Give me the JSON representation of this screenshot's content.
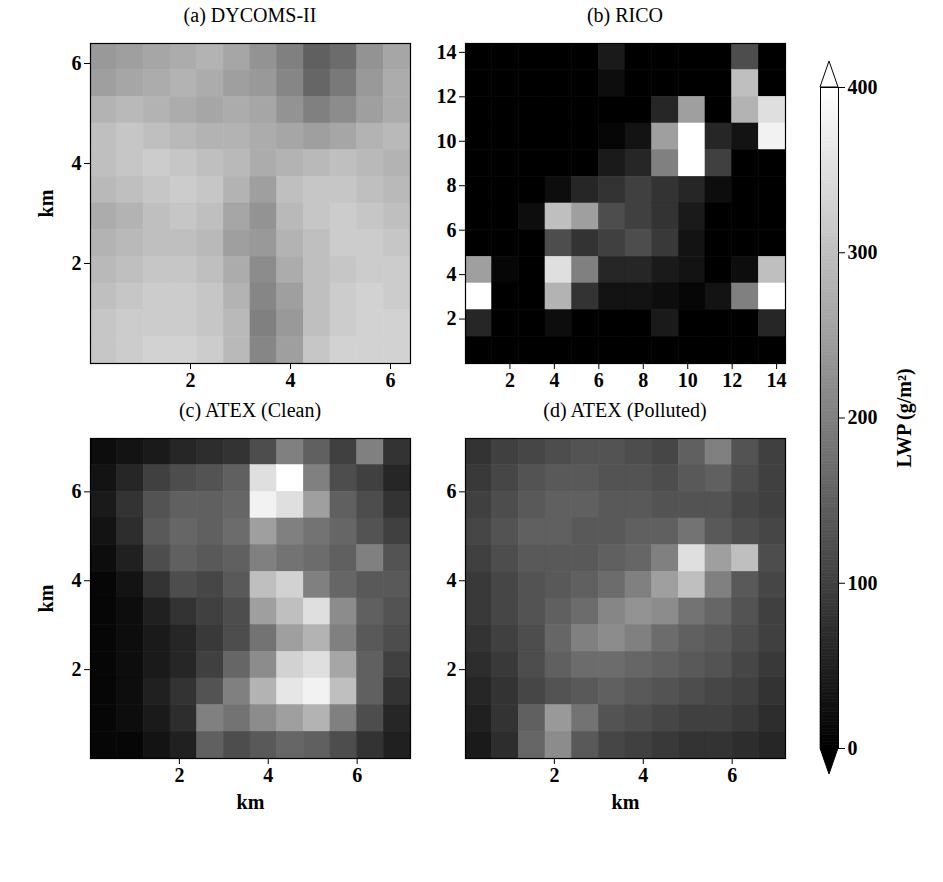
{
  "chart_data": [
    {
      "type": "heatmap",
      "title": "(a) DYCOMS-II",
      "ylabel": "km",
      "xlim": [
        0,
        6.4
      ],
      "xticks": [
        2,
        4,
        6
      ],
      "ylim": [
        0,
        6.4
      ],
      "yticks": [
        2,
        4,
        6
      ],
      "cells": [
        [
          240,
          250,
          260,
          270,
          280,
          260,
          230,
          200,
          150,
          170,
          230,
          260
        ],
        [
          250,
          260,
          270,
          280,
          270,
          250,
          240,
          210,
          160,
          190,
          240,
          270
        ],
        [
          280,
          290,
          280,
          270,
          260,
          270,
          260,
          230,
          200,
          220,
          250,
          270
        ],
        [
          300,
          310,
          300,
          290,
          280,
          280,
          270,
          260,
          250,
          260,
          280,
          290
        ],
        [
          300,
          310,
          320,
          310,
          300,
          290,
          270,
          280,
          290,
          300,
          290,
          280
        ],
        [
          290,
          300,
          310,
          320,
          310,
          280,
          250,
          300,
          310,
          310,
          300,
          290
        ],
        [
          270,
          280,
          300,
          310,
          300,
          260,
          230,
          290,
          310,
          320,
          310,
          300
        ],
        [
          280,
          290,
          300,
          300,
          290,
          250,
          240,
          280,
          300,
          320,
          320,
          310
        ],
        [
          290,
          300,
          310,
          310,
          300,
          270,
          220,
          270,
          300,
          310,
          320,
          320
        ],
        [
          300,
          310,
          320,
          320,
          310,
          280,
          210,
          250,
          300,
          320,
          330,
          320
        ],
        [
          310,
          320,
          320,
          320,
          310,
          290,
          200,
          240,
          300,
          320,
          330,
          330
        ],
        [
          310,
          320,
          330,
          330,
          320,
          290,
          210,
          250,
          310,
          330,
          330,
          330
        ]
      ]
    },
    {
      "type": "heatmap",
      "title": "(b) RICO",
      "xlim": [
        0,
        14.4
      ],
      "xticks": [
        2,
        4,
        6,
        8,
        10,
        12,
        14
      ],
      "ylim": [
        0,
        14.4
      ],
      "yticks": [
        2,
        4,
        6,
        8,
        10,
        12,
        14
      ],
      "cells": [
        [
          0,
          0,
          0,
          0,
          0,
          40,
          0,
          0,
          0,
          0,
          120,
          0
        ],
        [
          0,
          0,
          0,
          0,
          0,
          20,
          0,
          0,
          0,
          0,
          300,
          0
        ],
        [
          0,
          0,
          0,
          0,
          0,
          0,
          0,
          60,
          250,
          0,
          280,
          350
        ],
        [
          0,
          0,
          0,
          0,
          0,
          10,
          30,
          250,
          400,
          60,
          30,
          380
        ],
        [
          0,
          0,
          0,
          0,
          0,
          40,
          60,
          200,
          400,
          100,
          0,
          0
        ],
        [
          0,
          0,
          0,
          20,
          60,
          80,
          100,
          80,
          60,
          20,
          0,
          0
        ],
        [
          0,
          0,
          20,
          300,
          250,
          120,
          100,
          80,
          40,
          0,
          0,
          0
        ],
        [
          0,
          0,
          0,
          120,
          80,
          100,
          120,
          90,
          30,
          0,
          0,
          0
        ],
        [
          250,
          10,
          0,
          350,
          200,
          60,
          60,
          40,
          30,
          0,
          20,
          300
        ],
        [
          400,
          0,
          0,
          280,
          80,
          30,
          30,
          20,
          10,
          30,
          200,
          420
        ],
        [
          60,
          0,
          0,
          20,
          0,
          0,
          0,
          40,
          0,
          0,
          0,
          60
        ],
        [
          0,
          0,
          0,
          0,
          0,
          0,
          0,
          0,
          0,
          0,
          0,
          0
        ]
      ]
    },
    {
      "type": "heatmap",
      "title": "(c) ATEX (Clean)",
      "xlabel": "km",
      "ylabel": "km",
      "xlim": [
        0,
        7.2
      ],
      "xticks": [
        2,
        4,
        6
      ],
      "ylim": [
        0,
        7.2
      ],
      "yticks": [
        2,
        4,
        6
      ],
      "cells": [
        [
          20,
          30,
          40,
          60,
          70,
          80,
          120,
          200,
          150,
          100,
          200,
          80
        ],
        [
          30,
          60,
          100,
          120,
          130,
          150,
          350,
          400,
          200,
          120,
          100,
          60
        ],
        [
          40,
          80,
          130,
          150,
          150,
          160,
          380,
          350,
          250,
          150,
          120,
          80
        ],
        [
          30,
          70,
          140,
          160,
          150,
          170,
          250,
          200,
          180,
          160,
          130,
          100
        ],
        [
          20,
          50,
          120,
          150,
          140,
          150,
          200,
          180,
          170,
          150,
          200,
          130
        ],
        [
          10,
          30,
          80,
          120,
          110,
          140,
          300,
          330,
          200,
          160,
          140,
          140
        ],
        [
          10,
          20,
          50,
          80,
          100,
          120,
          250,
          300,
          350,
          220,
          150,
          130
        ],
        [
          10,
          20,
          40,
          60,
          90,
          120,
          180,
          250,
          280,
          200,
          140,
          120
        ],
        [
          10,
          20,
          40,
          60,
          100,
          160,
          220,
          330,
          350,
          260,
          150,
          100
        ],
        [
          10,
          20,
          50,
          80,
          130,
          200,
          280,
          360,
          380,
          300,
          150,
          80
        ],
        [
          10,
          20,
          40,
          70,
          200,
          180,
          220,
          250,
          280,
          200,
          120,
          60
        ],
        [
          10,
          10,
          30,
          50,
          150,
          120,
          140,
          160,
          150,
          120,
          80,
          50
        ]
      ]
    },
    {
      "type": "heatmap",
      "title": "(d) ATEX (Polluted)",
      "xlabel": "km",
      "xlim": [
        0,
        7.2
      ],
      "xticks": [
        2,
        4,
        6
      ],
      "ylim": [
        0,
        7.2
      ],
      "yticks": [
        2,
        4,
        6
      ],
      "cells": [
        [
          80,
          100,
          110,
          120,
          130,
          130,
          120,
          110,
          150,
          200,
          130,
          100
        ],
        [
          90,
          110,
          130,
          140,
          140,
          130,
          130,
          120,
          140,
          150,
          120,
          100
        ],
        [
          100,
          120,
          140,
          150,
          150,
          140,
          140,
          130,
          130,
          130,
          110,
          100
        ],
        [
          110,
          130,
          150,
          150,
          140,
          140,
          150,
          150,
          180,
          140,
          120,
          110
        ],
        [
          100,
          120,
          140,
          140,
          140,
          150,
          160,
          200,
          350,
          250,
          300,
          120
        ],
        [
          90,
          110,
          130,
          140,
          150,
          170,
          200,
          250,
          300,
          200,
          140,
          110
        ],
        [
          90,
          110,
          130,
          150,
          170,
          210,
          230,
          220,
          180,
          160,
          130,
          100
        ],
        [
          80,
          100,
          120,
          160,
          200,
          220,
          200,
          170,
          150,
          140,
          120,
          100
        ],
        [
          70,
          90,
          120,
          150,
          170,
          170,
          160,
          150,
          140,
          130,
          110,
          90
        ],
        [
          60,
          80,
          110,
          130,
          140,
          150,
          140,
          130,
          120,
          110,
          100,
          80
        ],
        [
          50,
          80,
          150,
          240,
          180,
          130,
          120,
          110,
          100,
          100,
          90,
          70
        ],
        [
          40,
          70,
          160,
          220,
          140,
          110,
          100,
          90,
          80,
          80,
          70,
          60
        ]
      ]
    }
  ],
  "colorbar": {
    "label": "LWP (g/m²)",
    "range": [
      0,
      400
    ],
    "ticks": [
      0,
      100,
      200,
      300,
      400
    ]
  }
}
